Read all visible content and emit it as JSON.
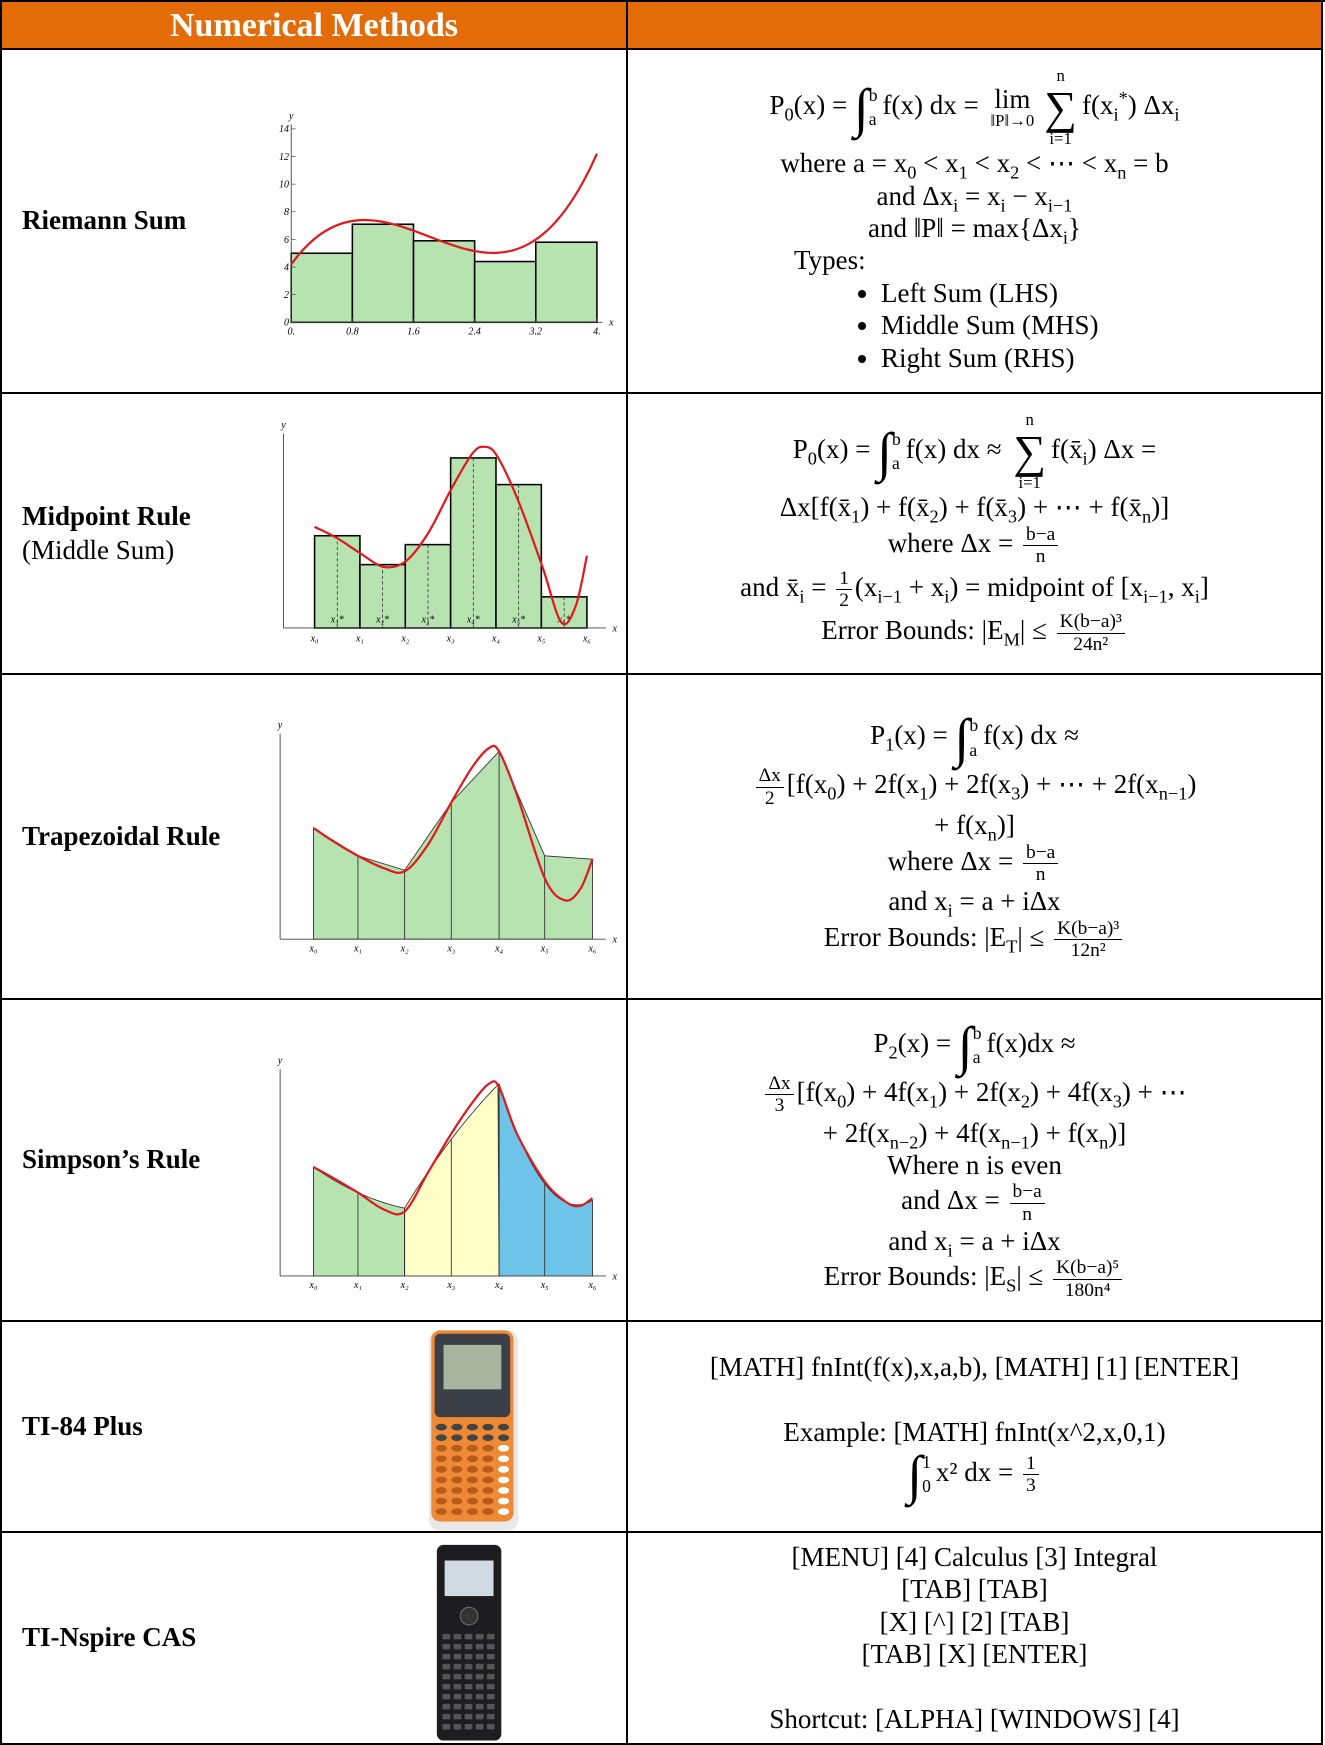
{
  "header": {
    "title": "Numerical Methods"
  },
  "rows": [
    {
      "name": "Riemann Sum",
      "graph": {
        "ylabel": "y",
        "xlabel": "x",
        "yticks": [
          "0",
          "2",
          "4",
          "6",
          "8",
          "10",
          "12",
          "14"
        ],
        "xticks": [
          "0.",
          "0.8",
          "1.6",
          "2.4",
          "3.2",
          "4."
        ]
      },
      "blocks": [
        [
          [
            "P",
            {
              "sub": "0"
            },
            "(x) = ",
            {
              "int": "∫",
              "lo": "a",
              "hi": "b"
            },
            "f(x) dx = ",
            {
              "lim": "lim",
              "lo": "‖P‖→0"
            },
            {
              "op": "∑",
              "lo": "i=1",
              "hi": "n"
            },
            "f(x",
            {
              "sub": "i"
            },
            {
              "sup": "*"
            },
            ") Δx",
            {
              "sub": "i"
            }
          ],
          [
            "where a = x",
            {
              "sub": "0"
            },
            " < x",
            {
              "sub": "1"
            },
            " < x",
            {
              "sub": "2"
            },
            " < ⋯ < x",
            {
              "sub": "n"
            },
            " = b"
          ],
          [
            "and Δx",
            {
              "sub": "i"
            },
            " = x",
            {
              "sub": "i"
            },
            " − x",
            {
              "sub": "i−1"
            }
          ],
          [
            "and ‖P‖ = max{Δx",
            {
              "sub": "i"
            },
            "}"
          ]
        ]
      ],
      "types": "Types:",
      "bullets": [
        "Left Sum (LHS)",
        "Middle Sum (MHS)",
        "Right Sum (RHS)"
      ]
    },
    {
      "name": "Midpoint Rule",
      "note": "(Middle Sum)",
      "graph": {
        "ylabel": "y",
        "xlabel": "x",
        "xticks": [
          "x₀",
          "x₁",
          "x₂",
          "x₃",
          "x₄",
          "x₅",
          "x₆"
        ],
        "midlabels": [
          "x₁*",
          "x₂*",
          "x₃*",
          "x₄*",
          "x₅*",
          "x₆*"
        ]
      },
      "blocks": [
        [
          [
            "P",
            {
              "sub": "0"
            },
            "(x) = ",
            {
              "int": "∫",
              "lo": "a",
              "hi": "b"
            },
            "f(x) dx  ≈ ",
            {
              "op": "∑",
              "lo": "i=1",
              "hi": "n"
            },
            "f(x̄",
            {
              "sub": "i"
            },
            ") Δx ="
          ],
          [
            "Δx[f(x̄",
            {
              "sub": "1"
            },
            ") + f(x̄",
            {
              "sub": "2"
            },
            ") + f(x̄",
            {
              "sub": "3"
            },
            ") + ⋯ + f(x̄",
            {
              "sub": "n"
            },
            ")]"
          ],
          [
            "where Δx = ",
            {
              "num": "b−a",
              "den": "n"
            }
          ],
          [
            "and x̄",
            {
              "sub": "i"
            },
            " = ",
            {
              "num": "1",
              "den": "2"
            },
            "(x",
            {
              "sub": "i−1"
            },
            " + x",
            {
              "sub": "i"
            },
            ") = midpoint of [x",
            {
              "sub": "i−1"
            },
            ", x",
            {
              "sub": "i"
            },
            "]"
          ],
          [
            "Error Bounds: |E",
            {
              "sub": "M"
            },
            "| ≤ ",
            {
              "num": "K(b−a)³",
              "den": "24n²"
            }
          ]
        ]
      ]
    },
    {
      "name": "Trapezoidal Rule",
      "graph": {
        "ylabel": "y",
        "xlabel": "x",
        "xticks": [
          "x₀",
          "x₁",
          "x₂",
          "x₃",
          "x₄",
          "x₅",
          "x₆"
        ]
      },
      "blocks": [
        [
          [
            "P",
            {
              "sub": "1"
            },
            "(x) = ",
            {
              "int": "∫",
              "lo": "a",
              "hi": "b"
            },
            "f(x) dx  ≈"
          ],
          [
            {
              "num": "Δx",
              "den": "2"
            },
            "[f(x",
            {
              "sub": "0"
            },
            ") + 2f(x",
            {
              "sub": "1"
            },
            ") + 2f(x",
            {
              "sub": "3"
            },
            ") + ⋯ + 2f(x",
            {
              "sub": "n−1"
            },
            ")"
          ],
          [
            "+ f(x",
            {
              "sub": "n"
            },
            ")]"
          ],
          [
            "where Δx = ",
            {
              "num": "b−a",
              "den": "n"
            }
          ],
          [
            "and x",
            {
              "sub": "i"
            },
            " = a + iΔx"
          ],
          [
            "Error Bounds: |E",
            {
              "sub": "T"
            },
            "| ≤ ",
            {
              "num": "K(b−a)³",
              "den": "12n²"
            }
          ]
        ]
      ]
    },
    {
      "name": "Simpson’s Rule",
      "graph": {
        "ylabel": "y",
        "xlabel": "x",
        "xticks": [
          "x₀",
          "x₁",
          "x₂",
          "x₃",
          "x₄",
          "x₅",
          "x₆"
        ]
      },
      "blocks": [
        [
          [
            "P",
            {
              "sub": "2"
            },
            "(x) = ",
            {
              "int": "∫",
              "lo": "a",
              "hi": "b"
            },
            "f(x)dx  ≈"
          ],
          [
            {
              "num": "Δx",
              "den": "3"
            },
            "[f(x",
            {
              "sub": "0"
            },
            ") + 4f(x",
            {
              "sub": "1"
            },
            ") + 2f(x",
            {
              "sub": "2"
            },
            ") + 4f(x",
            {
              "sub": "3"
            },
            ") + ⋯"
          ],
          [
            "+ 2f(x",
            {
              "sub": "n−2"
            },
            ") + 4f(x",
            {
              "sub": "n−1"
            },
            ") + f(x",
            {
              "sub": "n"
            },
            ")]"
          ],
          [
            "Where n is even"
          ],
          [
            "and Δx = ",
            {
              "num": "b−a",
              "den": "n"
            }
          ],
          [
            "and x",
            {
              "sub": "i"
            },
            " = a + iΔx"
          ],
          [
            "Error Bounds: |E",
            {
              "sub": "S"
            },
            "| ≤ ",
            {
              "num": "K(b−a)⁵",
              "den": "180n⁴"
            }
          ]
        ]
      ]
    },
    {
      "name": "TI-84 Plus",
      "blocks": [
        [
          [
            "[MATH] fnInt(f(x),x,a,b), [MATH] [1] [ENTER]"
          ]
        ],
        [
          [
            "Example:  [MATH] fnInt(x^2,x,0,1)"
          ],
          [
            {
              "int": "∫",
              "lo": "0",
              "hi": "1"
            },
            "x² dx = ",
            {
              "num": "1",
              "den": "3"
            }
          ]
        ]
      ]
    },
    {
      "name": "TI-Nspire CAS",
      "blocks": [
        [
          [
            "[MENU] [4] Calculus [3] Integral"
          ],
          [
            "[TAB] [TAB]"
          ],
          [
            "[X] [^] [2] [TAB]"
          ],
          [
            "[TAB] [X] [ENTER]"
          ]
        ],
        [
          [
            "Shortcut: [ALPHA] [WINDOWS] [4]"
          ]
        ]
      ]
    }
  ]
}
